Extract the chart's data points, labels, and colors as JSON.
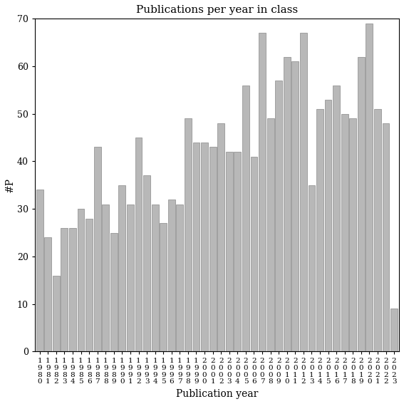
{
  "title": "Publications per year in class",
  "ylabel": "#P",
  "xlabel": "Publication year",
  "bar_color": "#b8b8b8",
  "bar_edge_color": "#888888",
  "background_color": "#ffffff",
  "ylim": [
    0,
    70
  ],
  "yticks": [
    0,
    10,
    20,
    30,
    40,
    50,
    60,
    70
  ],
  "years": [
    1980,
    1981,
    1982,
    1983,
    1984,
    1985,
    1986,
    1987,
    1988,
    1989,
    1990,
    1991,
    1992,
    1993,
    1994,
    1995,
    1996,
    1997,
    1998,
    1999,
    2000,
    2001,
    2002,
    2003,
    2004,
    2005,
    2006,
    2007,
    2008,
    2009,
    2010,
    2011,
    2012,
    2013,
    2014,
    2015,
    2016,
    2017,
    2018,
    2019,
    2020,
    2021,
    2022,
    2023
  ],
  "values": [
    34,
    24,
    16,
    26,
    26,
    30,
    28,
    43,
    31,
    25,
    35,
    31,
    45,
    37,
    31,
    27,
    32,
    31,
    49,
    44,
    44,
    43,
    48,
    42,
    42,
    56,
    41,
    67,
    49,
    57,
    62,
    61,
    67,
    35,
    51,
    53,
    56,
    50,
    49,
    62,
    69,
    51,
    48,
    9
  ]
}
